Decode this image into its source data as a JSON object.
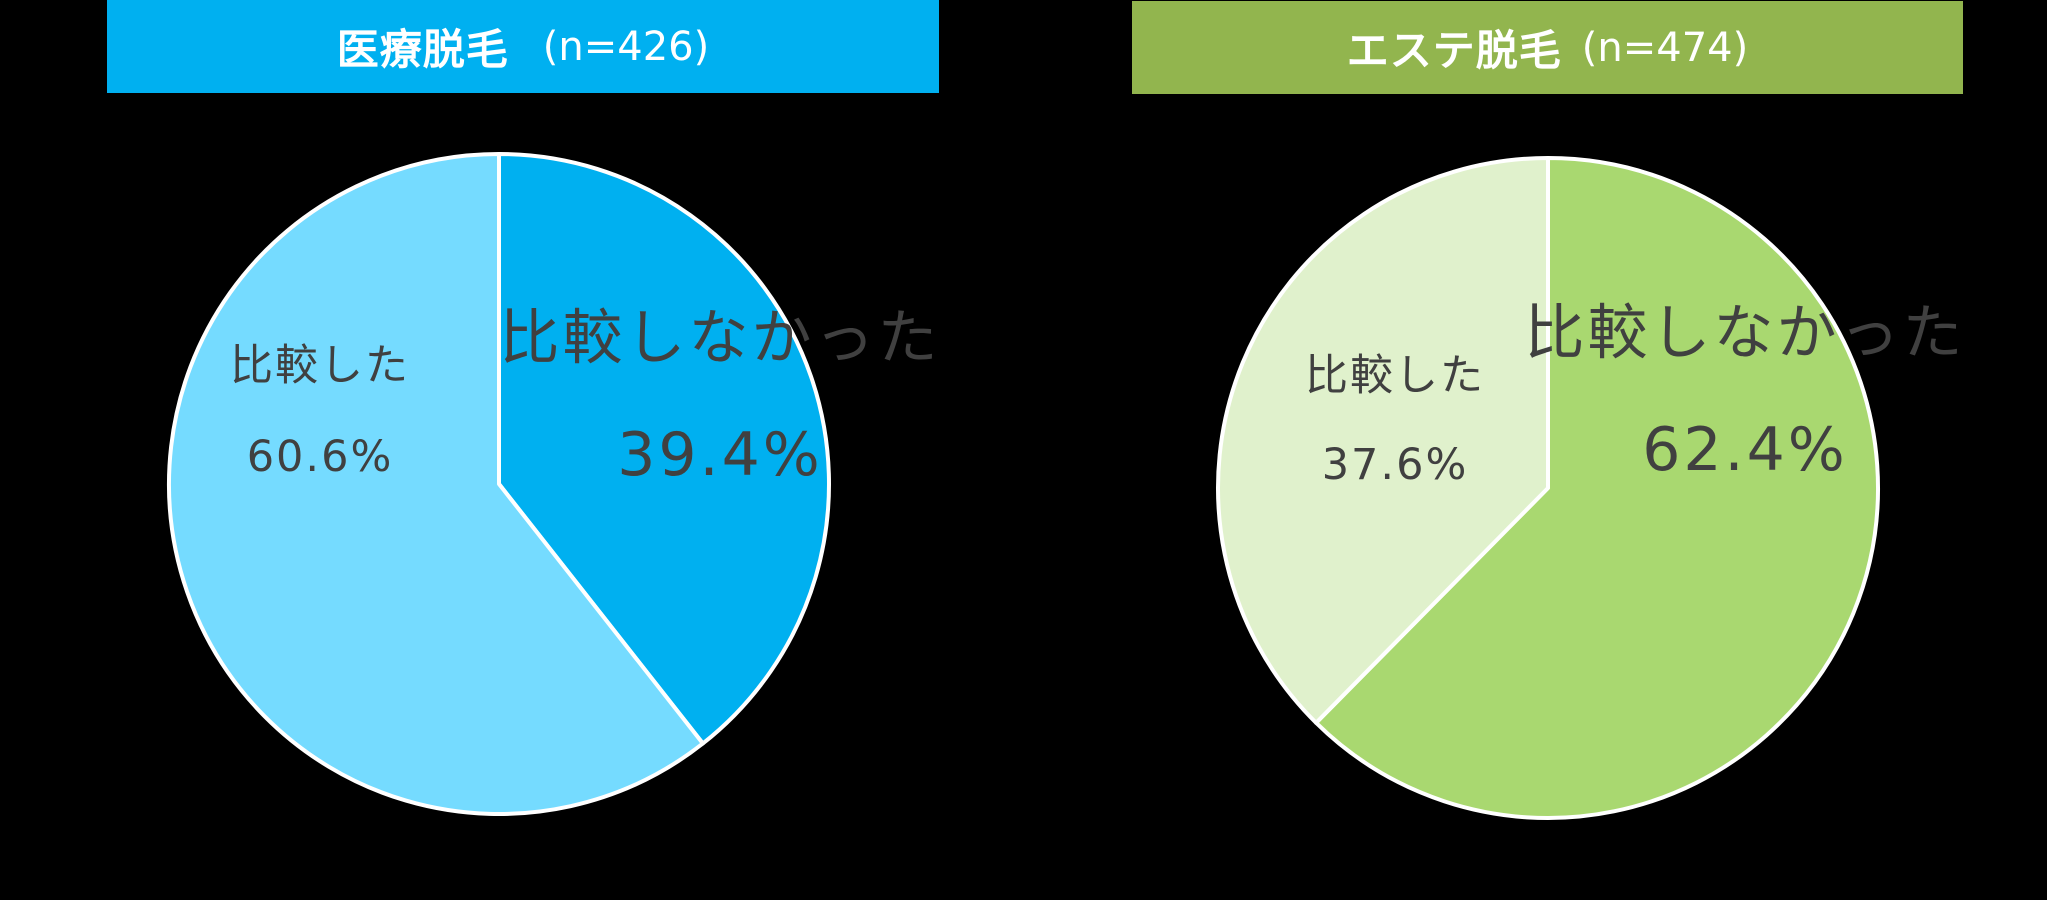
{
  "charts": [
    {
      "title": "医療脱毛",
      "n_label": "(n=426)",
      "header_color": "#00B0F0",
      "slices": [
        {
          "label": "比較しなかった",
          "value_label": "39.4%",
          "color": "#00B0F0"
        },
        {
          "label": "比較した",
          "value_label": "60.6%",
          "color": "#75DBFF"
        }
      ]
    },
    {
      "title": "エステ脱毛",
      "n_label": "(n=474)",
      "header_color": "#92B54E",
      "slices": [
        {
          "label": "比較しなかった",
          "value_label": "62.4%",
          "color": "#A9D870"
        },
        {
          "label": "比較した",
          "value_label": "37.6%",
          "color": "#E0F1CC"
        }
      ]
    }
  ],
  "chart_data": [
    {
      "type": "pie",
      "title": "医療脱毛 (n=426)",
      "categories": [
        "比較しなかった",
        "比較した"
      ],
      "values": [
        39.4,
        60.6
      ],
      "colors": [
        "#00B0F0",
        "#75DBFF"
      ],
      "n": 426,
      "unit": "%",
      "start_angle": "12 o'clock, clockwise",
      "legend": "none (data labels inside slices)"
    },
    {
      "type": "pie",
      "title": "エステ脱毛 (n=474)",
      "categories": [
        "比較しなかった",
        "比較した"
      ],
      "values": [
        62.4,
        37.6
      ],
      "colors": [
        "#A9D870",
        "#E0F1CC"
      ],
      "n": 474,
      "unit": "%",
      "start_angle": "12 o'clock, clockwise",
      "legend": "none (data labels inside slices)"
    }
  ]
}
